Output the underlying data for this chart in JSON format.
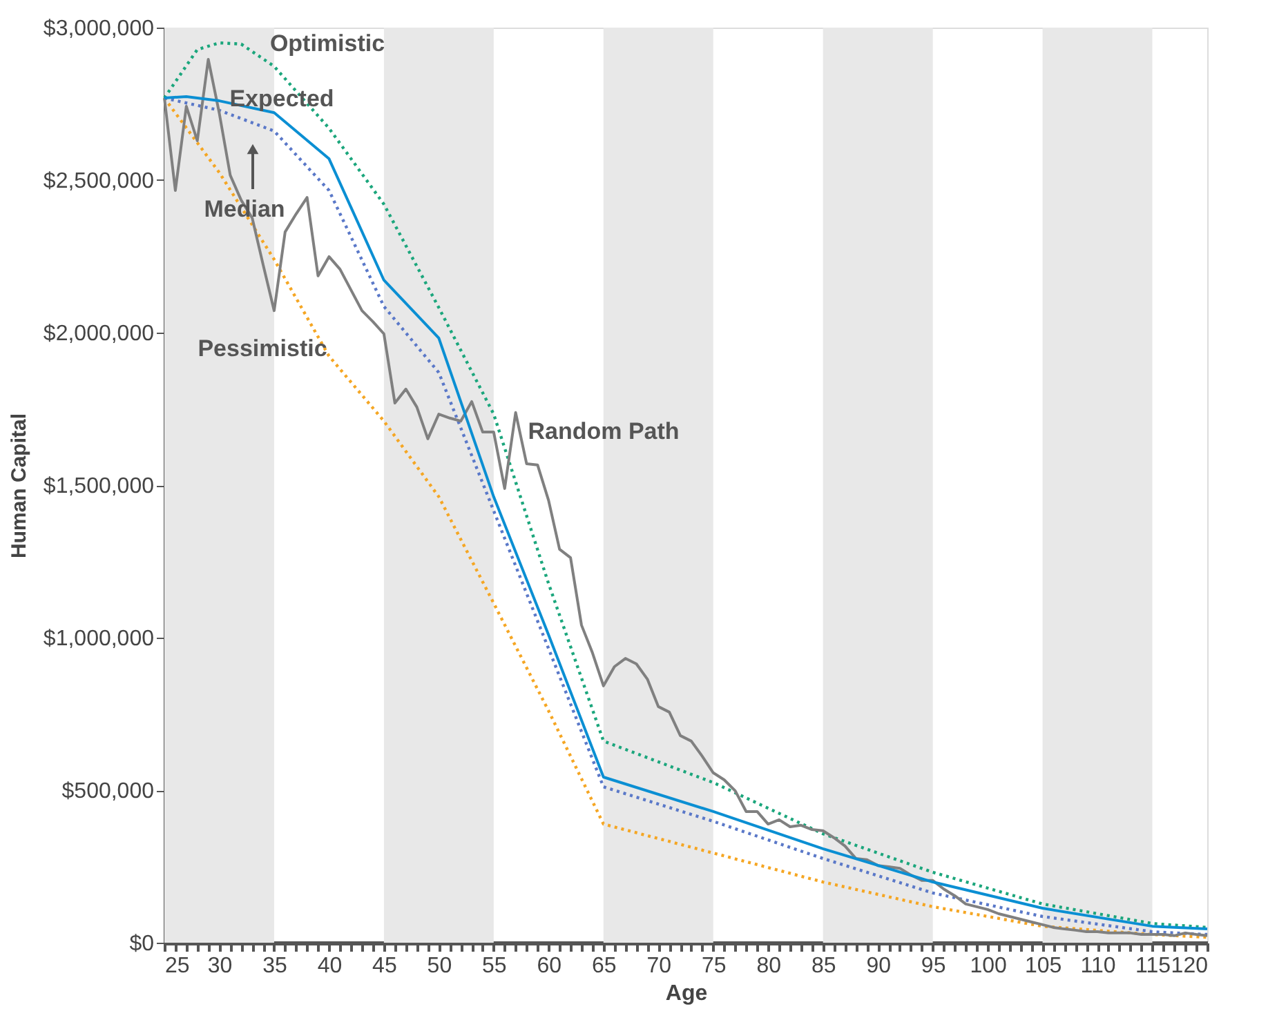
{
  "chart_data": {
    "type": "line",
    "xlabel": "Age",
    "ylabel": "Human Capital",
    "xlim": [
      25,
      120
    ],
    "ylim": [
      0,
      3000000
    ],
    "xticks": [
      25,
      {
        "value": 26,
        "label": null
      },
      {
        "value": 27,
        "label": null
      },
      {
        "value": 28,
        "label": null
      },
      {
        "value": 29,
        "label": null
      },
      30,
      {
        "value": 31,
        "label": null
      },
      {
        "value": 32,
        "label": null
      },
      {
        "value": 33,
        "label": null
      },
      {
        "value": 34,
        "label": null
      },
      35,
      {
        "value": 36,
        "label": null
      },
      {
        "value": 37,
        "label": null
      },
      {
        "value": 38,
        "label": null
      },
      {
        "value": 39,
        "label": null
      },
      40,
      {
        "value": 41,
        "label": null
      },
      {
        "value": 42,
        "label": null
      },
      {
        "value": 43,
        "label": null
      },
      {
        "value": 44,
        "label": null
      },
      45,
      {
        "value": 46,
        "label": null
      },
      {
        "value": 47,
        "label": null
      },
      {
        "value": 48,
        "label": null
      },
      {
        "value": 49,
        "label": null
      },
      50,
      {
        "value": 51,
        "label": null
      },
      {
        "value": 52,
        "label": null
      },
      {
        "value": 53,
        "label": null
      },
      {
        "value": 54,
        "label": null
      },
      55,
      {
        "value": 56,
        "label": null
      },
      {
        "value": 57,
        "label": null
      },
      {
        "value": 58,
        "label": null
      },
      {
        "value": 59,
        "label": null
      },
      60,
      {
        "value": 61,
        "label": null
      },
      {
        "value": 62,
        "label": null
      },
      {
        "value": 63,
        "label": null
      },
      {
        "value": 64,
        "label": null
      },
      65,
      {
        "value": 66,
        "label": null
      },
      {
        "value": 67,
        "label": null
      },
      {
        "value": 68,
        "label": null
      },
      {
        "value": 69,
        "label": null
      },
      70,
      {
        "value": 71,
        "label": null
      },
      {
        "value": 72,
        "label": null
      },
      {
        "value": 73,
        "label": null
      },
      {
        "value": 74,
        "label": null
      },
      75,
      {
        "value": 76,
        "label": null
      },
      {
        "value": 77,
        "label": null
      },
      {
        "value": 78,
        "label": null
      },
      {
        "value": 79,
        "label": null
      },
      80,
      {
        "value": 81,
        "label": null
      },
      {
        "value": 82,
        "label": null
      },
      {
        "value": 83,
        "label": null
      },
      {
        "value": 84,
        "label": null
      },
      85,
      {
        "value": 86,
        "label": null
      },
      {
        "value": 87,
        "label": null
      },
      {
        "value": 88,
        "label": null
      },
      {
        "value": 89,
        "label": null
      },
      90,
      {
        "value": 91,
        "label": null
      },
      {
        "value": 92,
        "label": null
      },
      {
        "value": 93,
        "label": null
      },
      {
        "value": 94,
        "label": null
      },
      95,
      {
        "value": 96,
        "label": null
      },
      {
        "value": 97,
        "label": null
      },
      {
        "value": 98,
        "label": null
      },
      {
        "value": 99,
        "label": null
      },
      100,
      {
        "value": 101,
        "label": null
      },
      {
        "value": 102,
        "label": null
      },
      {
        "value": 103,
        "label": null
      },
      {
        "value": 104,
        "label": null
      },
      105,
      {
        "value": 106,
        "label": null
      },
      {
        "value": 107,
        "label": null
      },
      {
        "value": 108,
        "label": null
      },
      {
        "value": 109,
        "label": null
      },
      110,
      {
        "value": 111,
        "label": null
      },
      {
        "value": 112,
        "label": null
      },
      {
        "value": 113,
        "label": null
      },
      {
        "value": 114,
        "label": null
      },
      115,
      {
        "value": 116,
        "label": null
      },
      {
        "value": 117,
        "label": null
      },
      {
        "value": 118,
        "label": null
      },
      {
        "value": 119,
        "label": null
      },
      120
    ],
    "yticks": [
      {
        "value": 0,
        "label": "$0"
      },
      {
        "value": 500000,
        "label": "$500,000"
      },
      {
        "value": 1000000,
        "label": "$1,000,000"
      },
      {
        "value": 1500000,
        "label": "$1,500,000"
      },
      {
        "value": 2000000,
        "label": "$2,000,000"
      },
      {
        "value": 2500000,
        "label": "$2,500,000"
      },
      {
        "value": 3000000,
        "label": "$3,000,000"
      }
    ],
    "grid": false,
    "marker": "none",
    "bands": [
      {
        "axis": "x",
        "from": 25,
        "to": 35,
        "color": "#e8e8e8"
      },
      {
        "axis": "x",
        "from": 45,
        "to": 55,
        "color": "#e8e8e8"
      },
      {
        "axis": "x",
        "from": 65,
        "to": 75,
        "color": "#e8e8e8"
      },
      {
        "axis": "x",
        "from": 85,
        "to": 95,
        "color": "#e8e8e8"
      },
      {
        "axis": "x",
        "from": 105,
        "to": 115,
        "color": "#e8e8e8"
      }
    ],
    "series": [
      {
        "color": "#f5a623",
        "line_style": "dotted",
        "x": [
          25,
          30,
          35,
          40,
          45,
          50,
          55,
          60,
          65,
          75,
          85,
          95,
          105,
          115,
          120
        ],
        "values": [
          2769000,
          2525000,
          2240000,
          1923000,
          1710000,
          1462000,
          1113000,
          760000,
          389000,
          294000,
          199000,
          118000,
          54000,
          27000,
          18000
        ]
      },
      {
        "color": "#5a78c8",
        "line_style": "dotted",
        "x": [
          25,
          30,
          35,
          40,
          45,
          50,
          55,
          60,
          65,
          75,
          85,
          95,
          105,
          115,
          120
        ],
        "values": [
          2769000,
          2729000,
          2661000,
          2466000,
          2086000,
          1869000,
          1416000,
          964000,
          511000,
          398000,
          276000,
          163000,
          86000,
          36000,
          27000
        ]
      },
      {
        "color": "#1ba67c",
        "line_style": "dotted",
        "x": [
          25,
          28,
          30,
          32,
          35,
          40,
          45,
          50,
          55,
          60,
          65,
          75,
          85,
          95,
          105,
          115,
          120
        ],
        "values": [
          2769000,
          2928000,
          2950000,
          2946000,
          2873000,
          2670000,
          2421000,
          2082000,
          1733000,
          1177000,
          661000,
          525000,
          357000,
          231000,
          127000,
          63000,
          50000
        ]
      },
      {
        "color": "#808080",
        "line_style": "solid",
        "x": [
          25,
          26,
          27,
          28,
          29,
          30,
          31,
          32,
          33,
          34,
          35,
          36,
          37,
          38,
          39,
          40,
          41,
          42,
          43,
          44,
          45,
          46,
          47,
          48,
          49,
          50,
          51,
          52,
          53,
          54,
          55,
          56,
          57,
          58,
          59,
          60,
          61,
          62,
          63,
          64,
          65,
          66,
          67,
          68,
          69,
          70,
          71,
          72,
          73,
          74,
          75,
          76,
          77,
          78,
          79,
          80,
          81,
          82,
          83,
          84,
          85,
          86,
          87,
          88,
          89,
          90,
          91,
          92,
          93,
          94,
          95,
          96,
          97,
          98,
          99,
          100,
          101,
          102,
          103,
          104,
          105,
          106,
          107,
          108,
          109,
          110,
          111,
          112,
          113,
          114,
          115,
          116,
          117,
          118,
          119,
          120
        ],
        "values": [
          2769000,
          2466000,
          2742000,
          2629000,
          2896000,
          2720000,
          2516000,
          2434000,
          2376000,
          2222000,
          2072000,
          2330000,
          2389000,
          2443000,
          2186000,
          2249000,
          2208000,
          2140000,
          2072000,
          2036000,
          1996000,
          1769000,
          1815000,
          1756000,
          1652000,
          1733000,
          1720000,
          1710000,
          1774000,
          1674000,
          1674000,
          1489000,
          1738000,
          1570000,
          1566000,
          1450000,
          1290000,
          1262000,
          1041000,
          950000,
          842000,
          905000,
          932000,
          914000,
          864000,
          774000,
          756000,
          679000,
          661000,
          611000,
          557000,
          534000,
          498000,
          430000,
          430000,
          389000,
          403000,
          380000,
          385000,
          371000,
          367000,
          344000,
          317000,
          276000,
          272000,
          253000,
          249000,
          244000,
          222000,
          204000,
          204000,
          176000,
          154000,
          127000,
          118000,
          109000,
          95000,
          86000,
          77000,
          68000,
          59000,
          50000,
          45000,
          41000,
          36000,
          36000,
          32000,
          32000,
          32000,
          27000,
          27000,
          27000,
          23000,
          32000,
          27000,
          23000
        ]
      },
      {
        "color": "#0b8fd3",
        "line_style": "solid",
        "x": [
          25,
          27,
          30,
          35,
          40,
          45,
          50,
          55,
          60,
          65,
          75,
          85,
          95,
          105,
          115,
          120
        ],
        "values": [
          2769000,
          2774000,
          2760000,
          2721000,
          2570000,
          2172000,
          1982000,
          1462000,
          1009000,
          543000,
          430000,
          308000,
          199000,
          113000,
          54000,
          45000
        ]
      }
    ],
    "annotations": [
      "Optimistic",
      "Expected",
      "Median",
      "Pessimistic",
      "Random Path"
    ]
  }
}
